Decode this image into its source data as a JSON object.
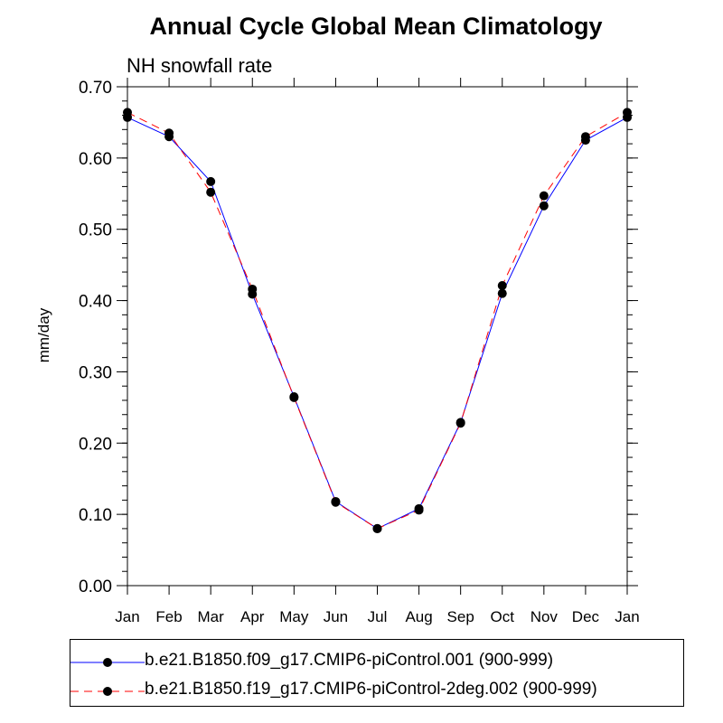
{
  "chart_data": {
    "type": "line",
    "title": "Annual Cycle Global Mean Climatology",
    "subtitle": "NH snowfall rate",
    "ylabel": "mm/day",
    "xlabel": "",
    "categories": [
      "Jan",
      "Feb",
      "Mar",
      "Apr",
      "May",
      "Jun",
      "Jul",
      "Aug",
      "Sep",
      "Oct",
      "Nov",
      "Dec",
      "Jan"
    ],
    "ylim": [
      0.0,
      0.7
    ],
    "yticks": [
      "0.00",
      "0.10",
      "0.20",
      "0.30",
      "0.40",
      "0.50",
      "0.60",
      "0.70"
    ],
    "series": [
      {
        "name": "b.e21.B1850.f09_g17.CMIP6-piControl.001 (900-999)",
        "color": "#0000ff",
        "dash": "solid",
        "values": [
          0.657,
          0.63,
          0.567,
          0.409,
          0.265,
          0.118,
          0.08,
          0.108,
          0.229,
          0.41,
          0.533,
          0.625,
          0.657
        ]
      },
      {
        "name": "b.e21.B1850.f19_g17.CMIP6-piControl-2deg.002 (900-999)",
        "color": "#ff0000",
        "dash": "dashed",
        "values": [
          0.664,
          0.635,
          0.552,
          0.416,
          0.264,
          0.117,
          0.08,
          0.106,
          0.228,
          0.421,
          0.547,
          0.63,
          0.664
        ]
      }
    ],
    "grid": false,
    "legend_position": "bottom"
  }
}
